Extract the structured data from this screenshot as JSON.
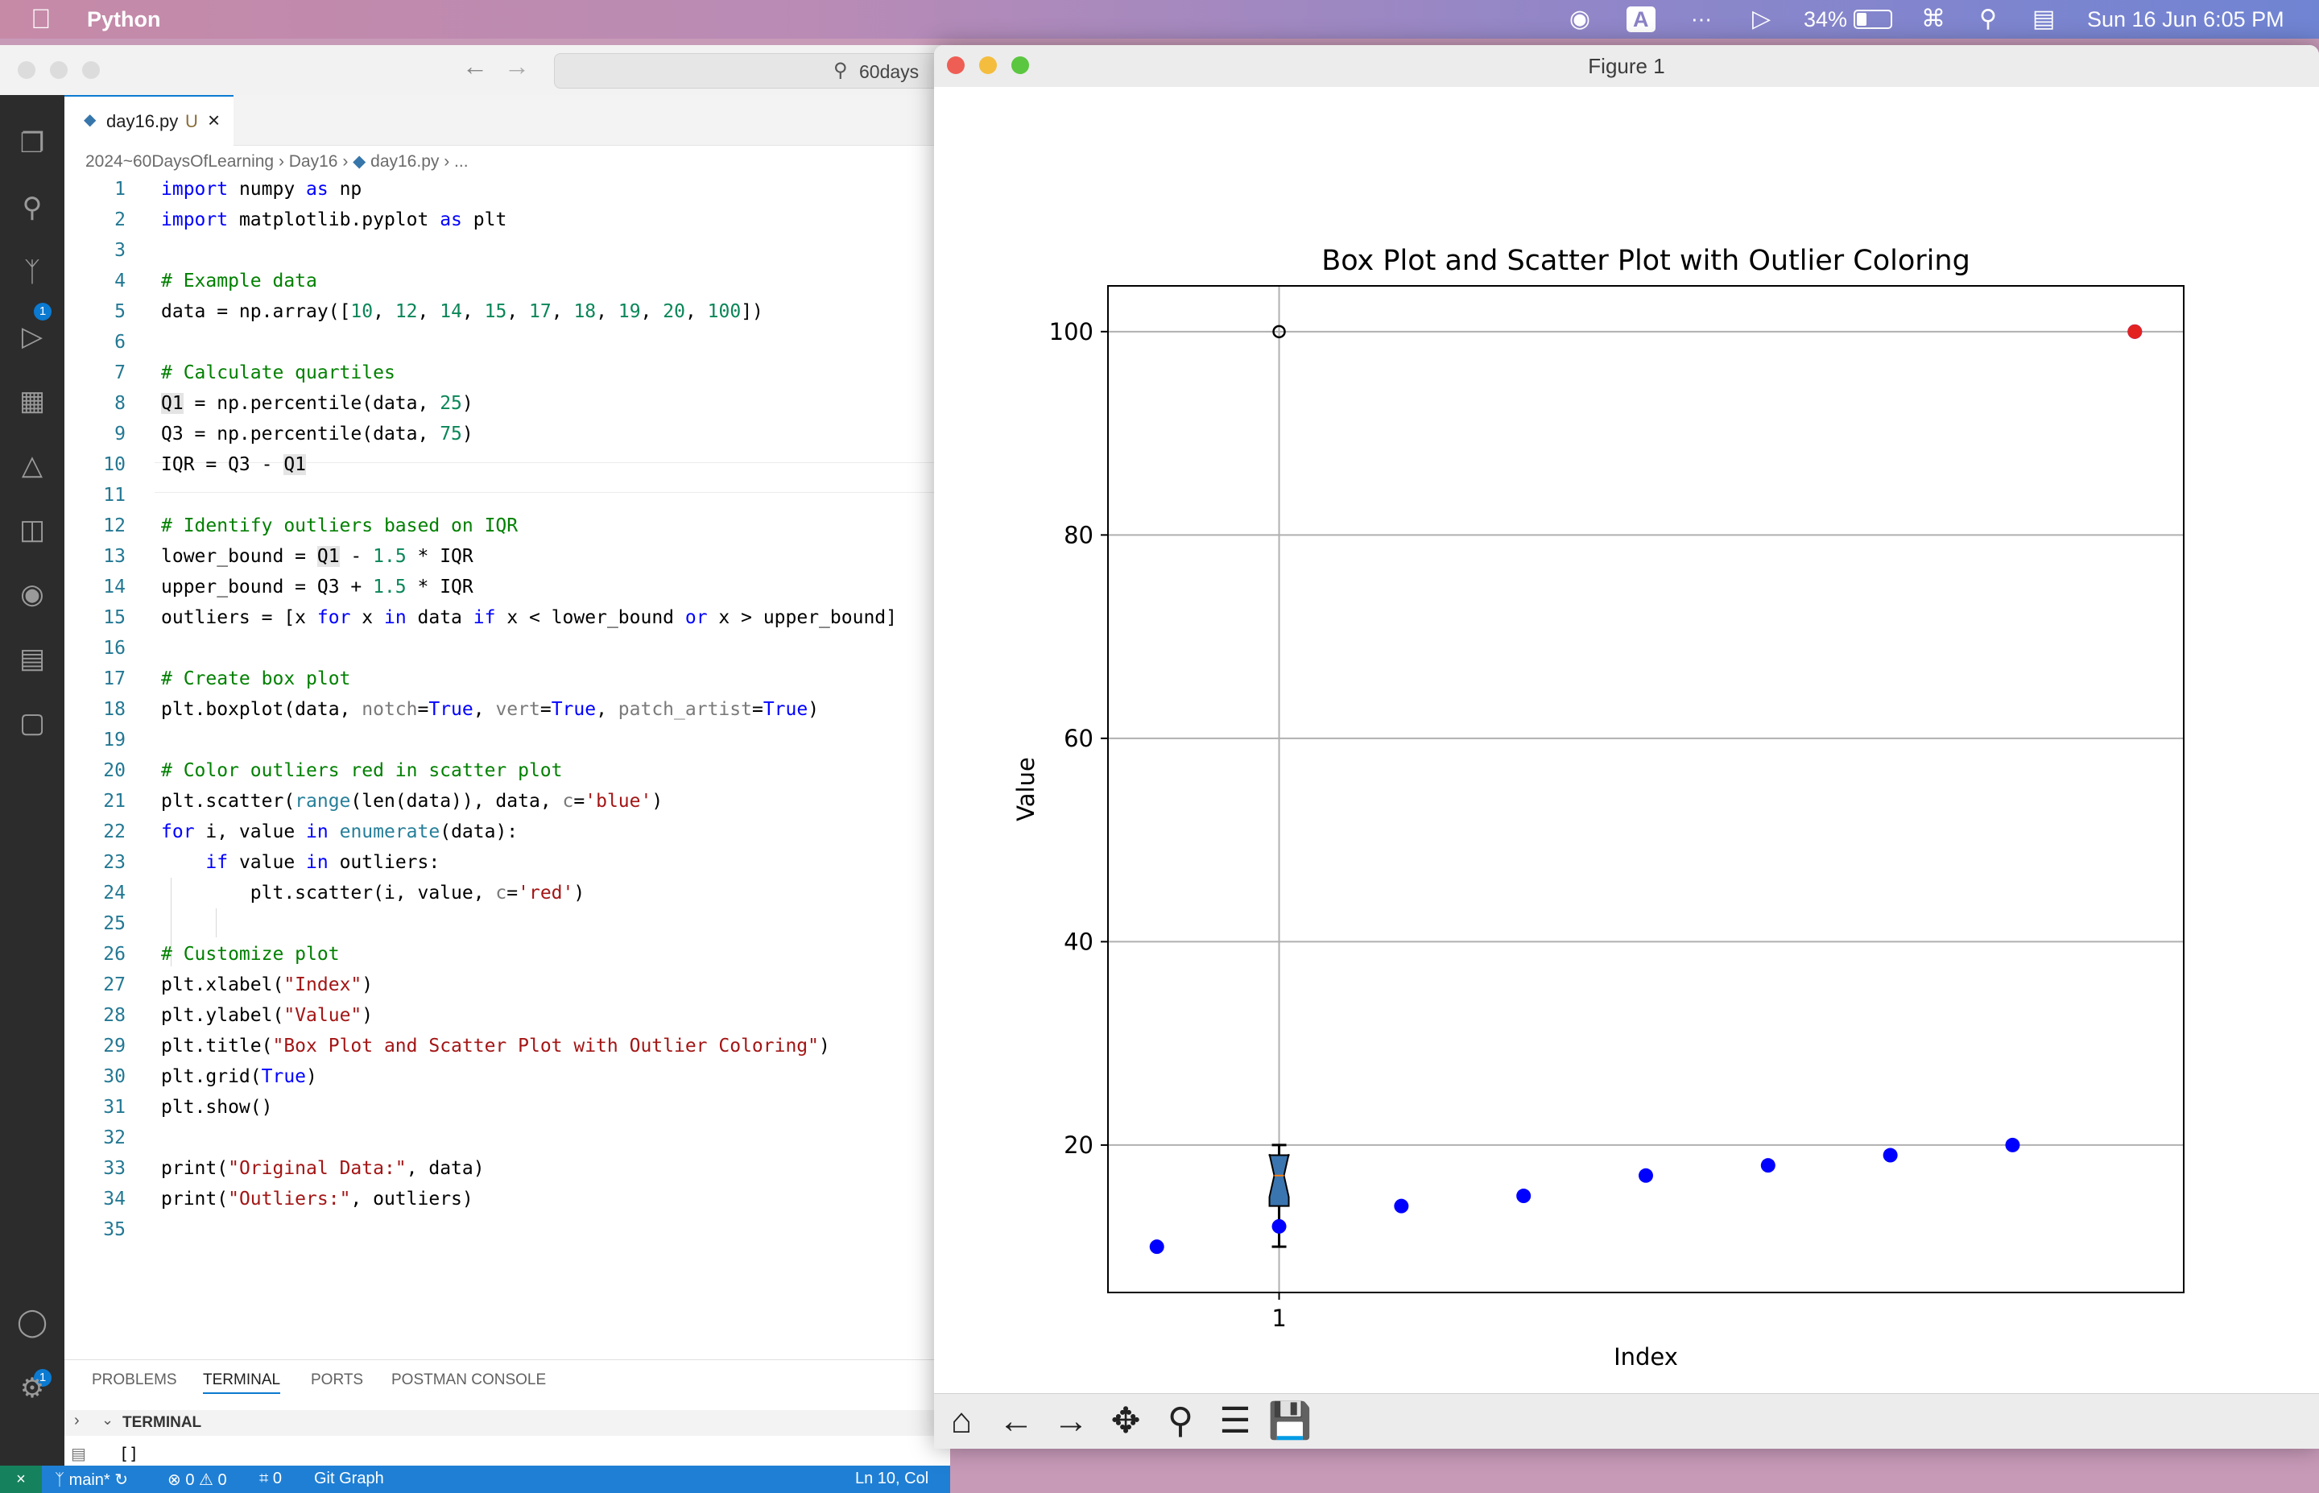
{
  "menubar": {
    "app_name": "Python",
    "battery": "34%",
    "clock": "Sun 16 Jun  6:05 PM",
    "input_label": "A"
  },
  "vscode": {
    "search_text": "60days",
    "tab": {
      "filename": "day16.py",
      "status": "U"
    },
    "breadcrumb": [
      "2024~60DaysOfLearning",
      "Day16",
      "day16.py",
      "..."
    ],
    "lines": [
      "import numpy as np",
      "import matplotlib.pyplot as plt",
      "",
      "# Example data",
      "data = np.array([10, 12, 14, 15, 17, 18, 19, 20, 100])",
      "",
      "# Calculate quartiles",
      "Q1 = np.percentile(data, 25)",
      "Q3 = np.percentile(data, 75)",
      "IQR = Q3 - Q1",
      "",
      "# Identify outliers based on IQR",
      "lower_bound = Q1 - 1.5 * IQR",
      "upper_bound = Q3 + 1.5 * IQR",
      "outliers = [x for x in data if x < lower_bound or x > upper_bound]",
      "",
      "# Create box plot",
      "plt.boxplot(data, notch=True, vert=True, patch_artist=True)",
      "",
      "# Color outliers red in scatter plot",
      "plt.scatter(range(len(data)), data, c='blue')",
      "for i, value in enumerate(data):",
      "    if value in outliers:",
      "        plt.scatter(i, value, c='red')",
      "",
      "# Customize plot",
      "plt.xlabel(\"Index\")",
      "plt.ylabel(\"Value\")",
      "plt.title(\"Box Plot and Scatter Plot with Outlier Coloring\")",
      "plt.grid(True)",
      "plt.show()",
      "",
      "print(\"Original Data:\", data)",
      "print(\"Outliers:\", outliers)",
      ""
    ],
    "panel_tabs": [
      "PROBLEMS",
      "TERMINAL",
      "PORTS",
      "POSTMAN CONSOLE"
    ],
    "terminal_label": "TERMINAL",
    "terminal_prompt": "[]",
    "status": {
      "branch": "main*",
      "errors": "0",
      "warnings": "0",
      "ports": "0",
      "git_graph": "Git Graph",
      "cursor": "Ln 10, Col"
    },
    "badges": {
      "scm": "1",
      "accounts": "1"
    }
  },
  "figure": {
    "window_title": "Figure 1",
    "chart_data": {
      "type": "scatter",
      "title": "Box Plot and Scatter Plot with Outlier Coloring",
      "xlabel": "Index",
      "ylabel": "Value",
      "xlim": [
        -0.4,
        8.4
      ],
      "ylim": [
        5.5,
        104.5
      ],
      "grid": true,
      "x_ticks": [
        1
      ],
      "x_tick_labels": [
        "1"
      ],
      "y_ticks": [
        20,
        40,
        60,
        80,
        100
      ],
      "y_tick_labels": [
        "20",
        "40",
        "60",
        "80",
        "100"
      ],
      "series": [
        {
          "color": "#0000ff",
          "points": [
            [
              0,
              10
            ],
            [
              1,
              12
            ],
            [
              2,
              14
            ],
            [
              3,
              15
            ],
            [
              4,
              17
            ],
            [
              5,
              18
            ],
            [
              6,
              19
            ],
            [
              7,
              20
            ],
            [
              8,
              100
            ]
          ]
        },
        {
          "color": "#e32222",
          "points": [
            [
              8,
              100
            ]
          ]
        }
      ],
      "boxplot": {
        "position": 1,
        "whisker_low": 10,
        "q1": 14,
        "median": 17,
        "q3": 19,
        "whisker_high": 20,
        "notch_low": 14.9,
        "notch_high": 19.1,
        "outliers": [
          100
        ],
        "box_color": "#3b75af"
      }
    }
  }
}
